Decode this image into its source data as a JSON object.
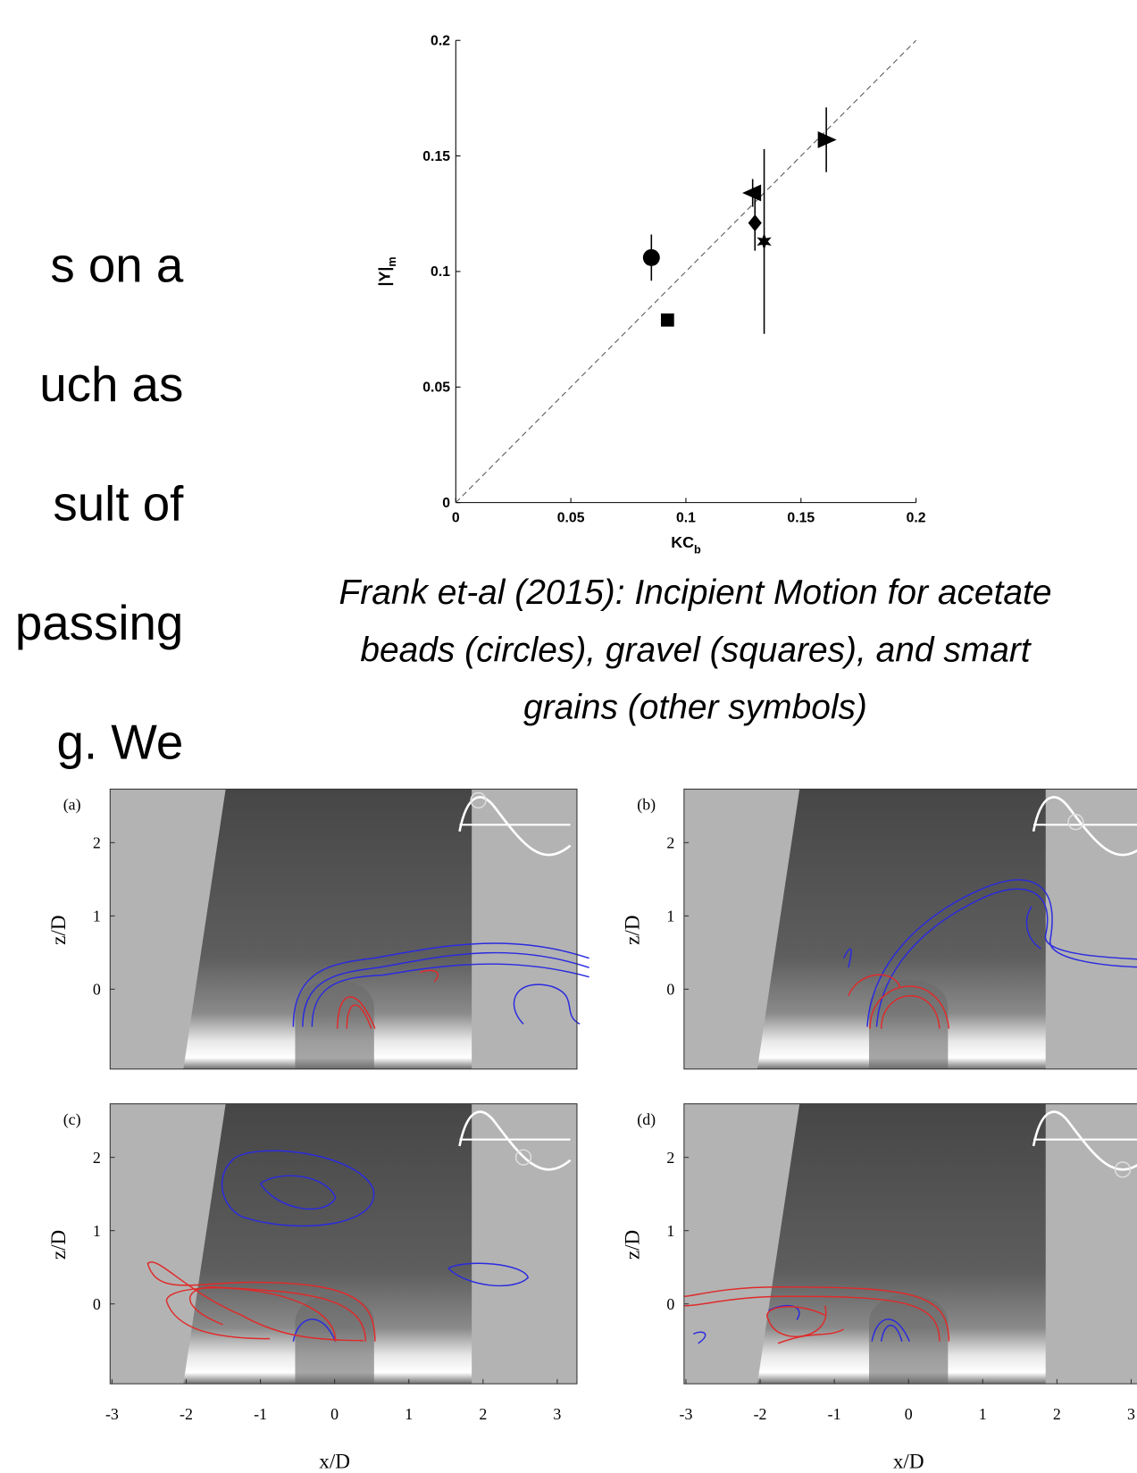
{
  "body_text": [
    "s on a",
    "uch as",
    "sult of",
    "passing",
    "g. We"
  ],
  "chart_data": {
    "type": "scatter",
    "xlabel": "KC",
    "xlabel_sub": "b",
    "ylabel": "|Υ|",
    "ylabel_sub": "m",
    "xlim": [
      0,
      0.2
    ],
    "ylim": [
      0,
      0.2
    ],
    "xticks": [
      0,
      0.05,
      0.1,
      0.15,
      0.2
    ],
    "yticks": [
      0,
      0.05,
      0.1,
      0.15,
      0.2
    ],
    "identity_line": true,
    "color": "#000000",
    "series": [
      {
        "marker": "circle",
        "x": [
          0.085
        ],
        "values": [
          0.106
        ],
        "errors": [
          0.01
        ]
      },
      {
        "marker": "square",
        "x": [
          0.092
        ],
        "values": [
          0.079
        ]
      },
      {
        "marker": "diamond",
        "x": [
          0.13
        ],
        "values": [
          0.121
        ],
        "errors": [
          0.012
        ]
      },
      {
        "marker": "triangle-left",
        "x": [
          0.129
        ],
        "values": [
          0.134
        ],
        "errors": [
          0.006
        ]
      },
      {
        "marker": "star",
        "x": [
          0.134
        ],
        "values": [
          0.113
        ],
        "errors": [
          0.04
        ]
      },
      {
        "marker": "triangle-right",
        "x": [
          0.161
        ],
        "values": [
          0.157
        ],
        "errors": [
          0.014
        ]
      }
    ]
  },
  "caption": [
    "Frank et-al (2015): Incipient Motion for acetate",
    "beads (circles), gravel (squares), and smart",
    "grains (other symbols)"
  ],
  "figure": {
    "panels": [
      {
        "label": "(a)"
      },
      {
        "label": "(b)"
      },
      {
        "label": "(c)"
      },
      {
        "label": "(d)"
      }
    ],
    "z_ticks": [
      2,
      1,
      0
    ],
    "x_ticks": [
      -3,
      -2,
      -1,
      0,
      1,
      2,
      3
    ],
    "z_label": "z/D",
    "x_label": "x/D"
  }
}
